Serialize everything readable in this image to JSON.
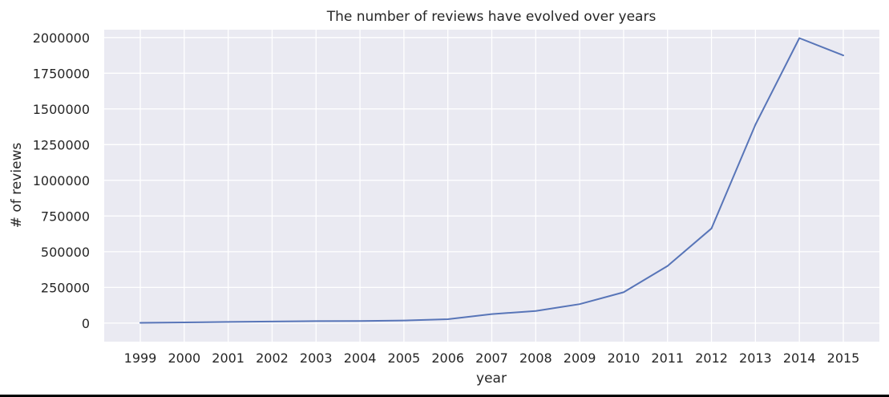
{
  "chart_data": {
    "type": "line",
    "title": "The number of reviews have evolved over years",
    "xlabel": "year",
    "ylabel": "# of reviews",
    "x": [
      "1999",
      "2000",
      "2001",
      "2002",
      "2003",
      "2004",
      "2005",
      "2006",
      "2007",
      "2008",
      "2009",
      "2010",
      "2011",
      "2012",
      "2013",
      "2014",
      "2015"
    ],
    "series": [
      {
        "values": [
          2000,
          5000,
          8000,
          11000,
          14000,
          15000,
          18000,
          27000,
          63000,
          85000,
          133000,
          216000,
          400000,
          663000,
          1390000,
          1996000,
          1875000
        ],
        "color": "#5875b8"
      }
    ],
    "ylim": [
      -130000,
      2055000
    ],
    "yticks": [
      0,
      250000,
      500000,
      750000,
      1000000,
      1250000,
      1500000,
      1750000,
      2000000
    ],
    "grid": true,
    "background": "#eaeaf2",
    "grid_color": "#ffffff"
  }
}
